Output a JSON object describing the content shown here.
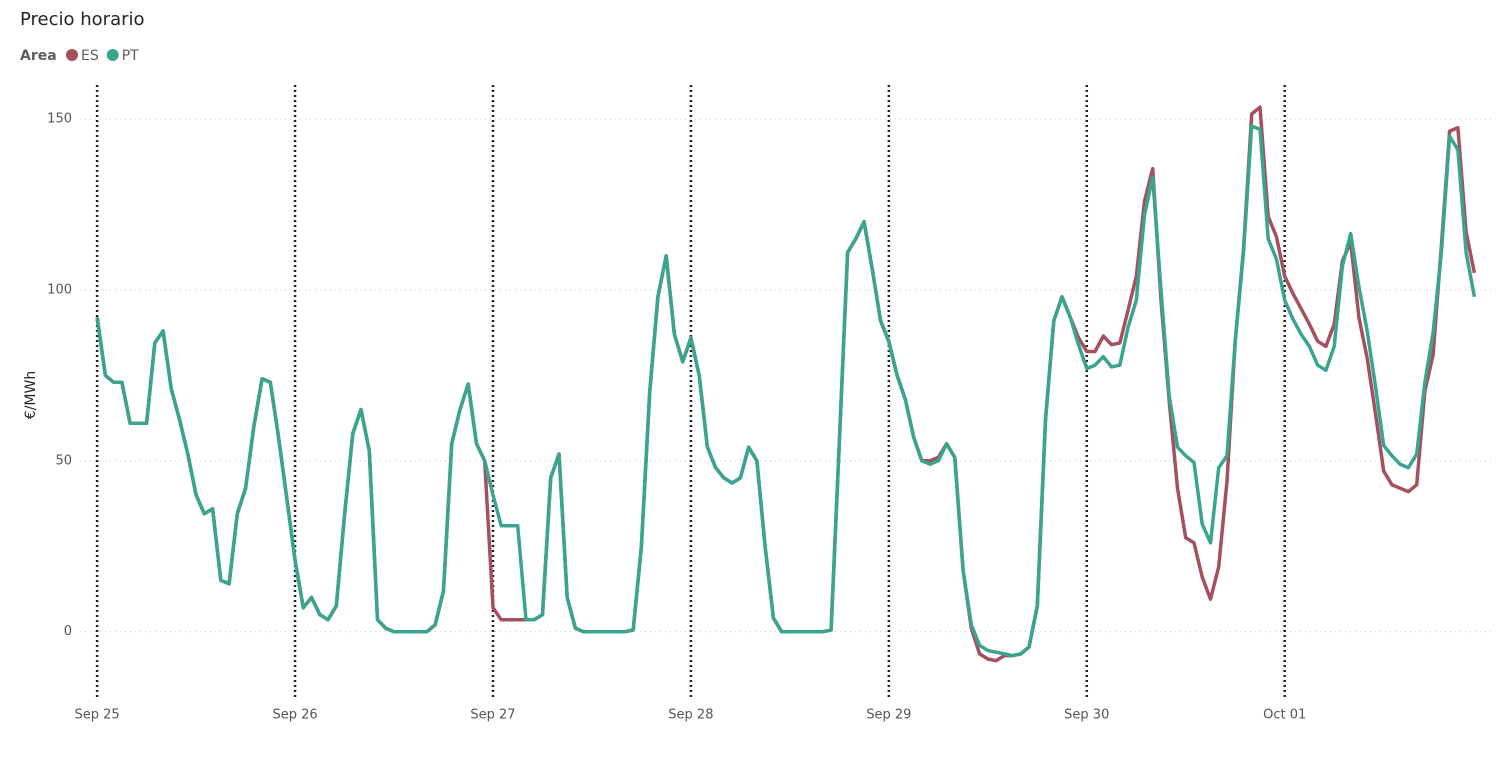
{
  "chart_data": {
    "type": "line",
    "title": "Precio horario",
    "legend_title": "Area",
    "y_label": "€/MWh",
    "x": [
      0,
      1,
      2,
      3,
      4,
      5,
      6,
      7,
      8,
      9,
      10,
      11,
      12,
      13,
      14,
      15,
      16,
      17,
      18,
      19,
      20,
      21,
      22,
      23,
      24,
      25,
      26,
      27,
      28,
      29,
      30,
      31,
      32,
      33,
      34,
      35,
      36,
      37,
      38,
      39,
      40,
      41,
      42,
      43,
      44,
      45,
      46,
      47,
      48,
      49,
      50,
      51,
      52,
      53,
      54,
      55,
      56,
      57,
      58,
      59,
      60,
      61,
      62,
      63,
      64,
      65,
      66,
      67,
      68,
      69,
      70,
      71,
      72,
      73,
      74,
      75,
      76,
      77,
      78,
      79,
      80,
      81,
      82,
      83,
      84,
      85,
      86,
      87,
      88,
      89,
      90,
      91,
      92,
      93,
      94,
      95,
      96,
      97,
      98,
      99,
      100,
      101,
      102,
      103,
      104,
      105,
      106,
      107,
      108,
      109,
      110,
      111,
      112,
      113,
      114,
      115,
      116,
      117,
      118,
      119,
      120,
      121,
      122,
      123,
      124,
      125,
      126,
      127,
      128,
      129,
      130,
      131,
      132,
      133,
      134,
      135,
      136,
      137,
      138,
      139,
      140,
      141,
      142,
      143,
      144,
      145,
      146,
      147,
      148,
      149,
      150,
      151,
      152,
      153,
      154,
      155,
      156,
      157,
      158,
      159,
      160,
      161,
      162,
      163,
      164,
      165,
      166,
      167
    ],
    "series": [
      {
        "name": "ES",
        "color": "#a4505e",
        "values": [
          92,
          75,
          73,
          73,
          61,
          61,
          61,
          84.5,
          88,
          71,
          62,
          52,
          40,
          34.5,
          36,
          15,
          14,
          34.5,
          42,
          60,
          74,
          73,
          57,
          39,
          21,
          7,
          10,
          5,
          3.5,
          7.5,
          34,
          58,
          65,
          53,
          3.5,
          1,
          0,
          0,
          0,
          0,
          0,
          2,
          12,
          55,
          65,
          72.5,
          55,
          50,
          7,
          3.5,
          3.5,
          3.5,
          3.5,
          3.5,
          5,
          45,
          52,
          10,
          1,
          0,
          0,
          0,
          0,
          0,
          0,
          0.5,
          25,
          70,
          98,
          110,
          87,
          79,
          86,
          75,
          54,
          48,
          45,
          43.5,
          45,
          54,
          50,
          25,
          4,
          0,
          0,
          0,
          0,
          0,
          0,
          0.5,
          56,
          111,
          115,
          120,
          106,
          91,
          85,
          75,
          68,
          57,
          50,
          50,
          51,
          55,
          51,
          18,
          1,
          -6.5,
          -8,
          -8.5,
          -7,
          -7,
          -6.5,
          -4.5,
          7.5,
          62,
          91,
          98,
          92,
          86,
          82,
          82,
          86.5,
          84,
          84.5,
          94,
          104,
          126,
          135.5,
          97,
          67.5,
          42,
          27.5,
          26,
          16,
          9.5,
          19,
          44,
          85,
          112,
          151.5,
          153.5,
          121.5,
          115.5,
          104,
          99,
          94.5,
          90,
          85,
          83.5,
          90,
          108.5,
          114,
          92,
          80,
          64,
          47,
          43,
          42,
          41,
          43,
          70.5,
          81,
          113,
          146.5,
          147.5,
          117,
          105
        ]
      },
      {
        "name": "PT",
        "color": "#3aa58f",
        "values": [
          92,
          75,
          73,
          73,
          61,
          61,
          61,
          84.5,
          88,
          71,
          62,
          52,
          40,
          34.5,
          36,
          15,
          14,
          34.5,
          42,
          60,
          74,
          73,
          57,
          39,
          21,
          7,
          10,
          5,
          3.5,
          7.5,
          34,
          58,
          65,
          53,
          3.5,
          1,
          0,
          0,
          0,
          0,
          0,
          2,
          12,
          55,
          65,
          72.5,
          55,
          50,
          40,
          31,
          31,
          31,
          3.5,
          3.5,
          5,
          45,
          52,
          10,
          1,
          0,
          0,
          0,
          0,
          0,
          0,
          0.5,
          25,
          70,
          98,
          110,
          87,
          79,
          86,
          75,
          54,
          48,
          45,
          43.5,
          45,
          54,
          50,
          25,
          4,
          0,
          0,
          0,
          0,
          0,
          0,
          0.5,
          56,
          111,
          115,
          120,
          106,
          91,
          85,
          75,
          68,
          57,
          50,
          49,
          50,
          55,
          51,
          18,
          2,
          -4,
          -5.5,
          -6,
          -6.5,
          -7,
          -6.5,
          -4.5,
          7.5,
          62,
          91,
          98,
          92,
          84,
          77,
          78,
          80.5,
          77.5,
          78,
          89,
          97,
          122,
          133,
          100,
          69,
          54,
          51.5,
          49.5,
          31.5,
          26,
          48,
          51.5,
          85,
          111,
          148,
          147,
          115,
          109,
          97,
          91.5,
          87,
          83.5,
          78,
          76.5,
          83.5,
          107,
          116.5,
          101,
          88,
          72,
          54.5,
          51.5,
          49,
          48,
          52,
          73,
          87.5,
          111,
          145,
          141,
          111,
          98
        ]
      }
    ],
    "xlim": [
      -4.5,
      169.5
    ],
    "xticks": [
      {
        "value": 0,
        "label": "Sep 25"
      },
      {
        "value": 24,
        "label": "Sep 26"
      },
      {
        "value": 48,
        "label": "Sep 27"
      },
      {
        "value": 72,
        "label": "Sep 28"
      },
      {
        "value": 96,
        "label": "Sep 29"
      },
      {
        "value": 120,
        "label": "Sep 30"
      },
      {
        "value": 144,
        "label": "Oct 01"
      }
    ],
    "ylim": [
      -20,
      160
    ],
    "yticks": [
      0,
      50,
      100,
      150
    ],
    "grid": true
  }
}
